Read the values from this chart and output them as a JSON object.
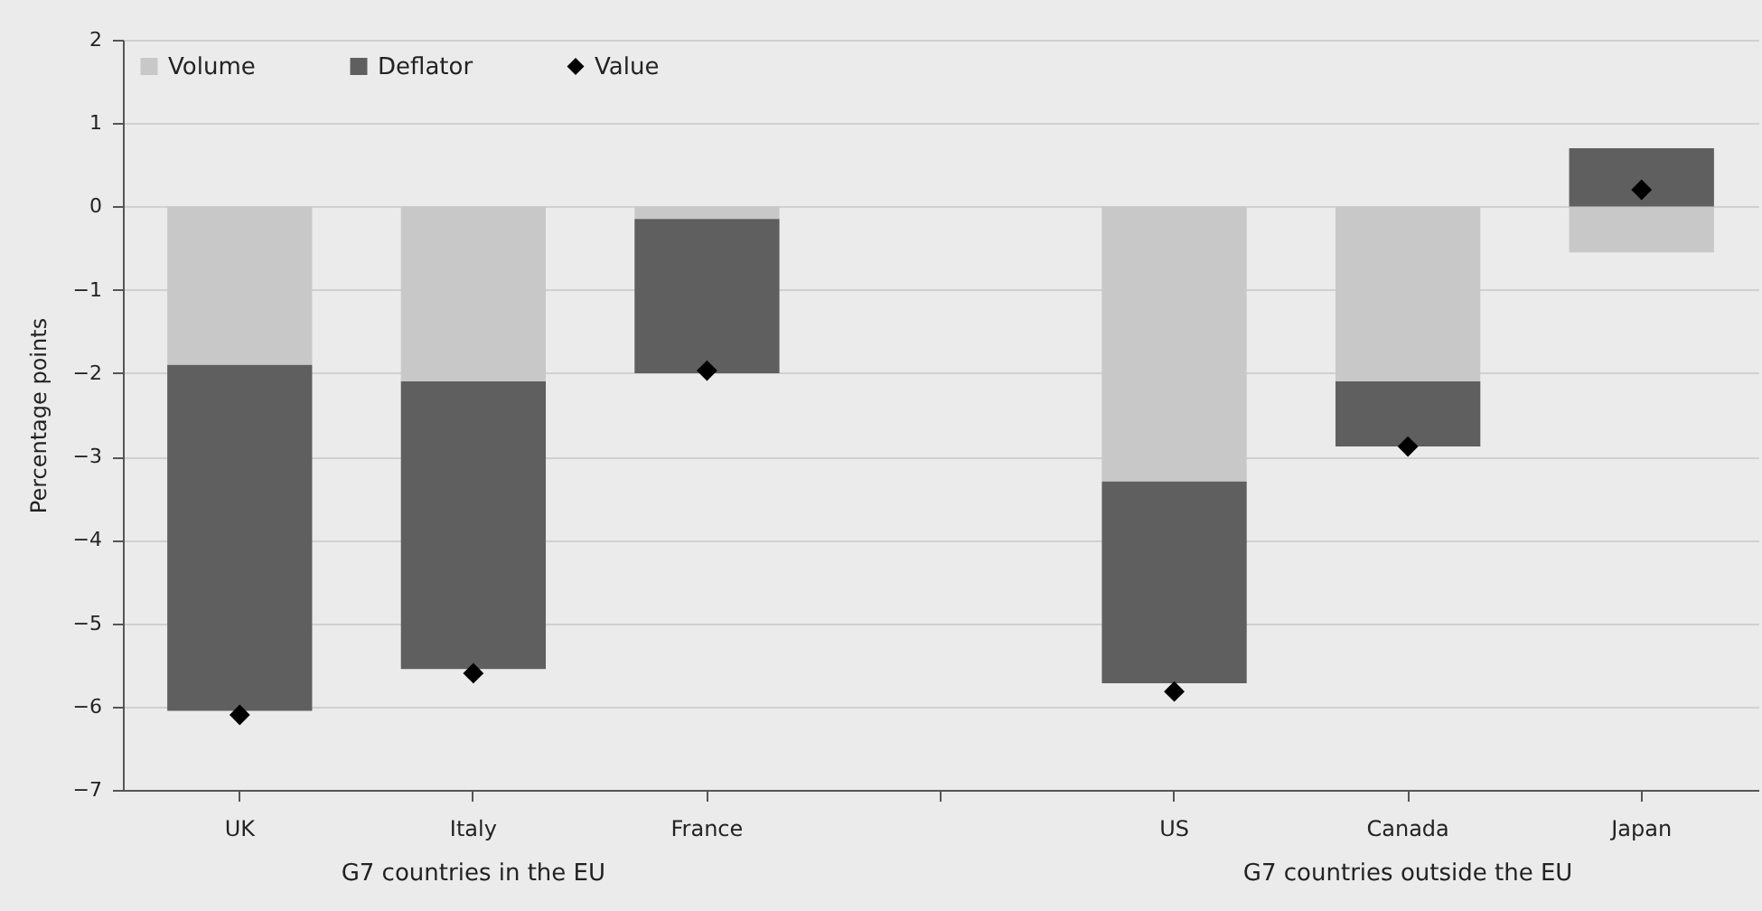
{
  "chart_data": {
    "type": "bar",
    "stacked": true,
    "ylabel": "Percentage points",
    "categories": [
      "UK",
      "Italy",
      "France",
      null,
      "US",
      "Canada",
      "Japan"
    ],
    "series": [
      {
        "name": "Volume",
        "color": "#c8c8c8",
        "values": [
          -1.9,
          -2.1,
          -0.15,
          null,
          -3.3,
          -2.1,
          -0.55
        ]
      },
      {
        "name": "Deflator",
        "color": "#5f5f5f",
        "values": [
          -4.15,
          -3.45,
          -1.85,
          null,
          -2.42,
          -0.78,
          0.7
        ]
      },
      {
        "name": "Value",
        "type": "scatter",
        "marker": "diamond",
        "color": "#000000",
        "values": [
          -6.1,
          -5.6,
          -1.97,
          null,
          -5.82,
          -2.88,
          0.2
        ]
      }
    ],
    "ylim": [
      -7,
      2
    ],
    "yticks": [
      -7,
      -6,
      -5,
      -4,
      -3,
      -2,
      -1,
      0,
      1,
      2
    ],
    "grid": "y",
    "legend": "top left",
    "annotations": [
      "G7 countries in the EU",
      "G7 countries outside the EU"
    ]
  }
}
